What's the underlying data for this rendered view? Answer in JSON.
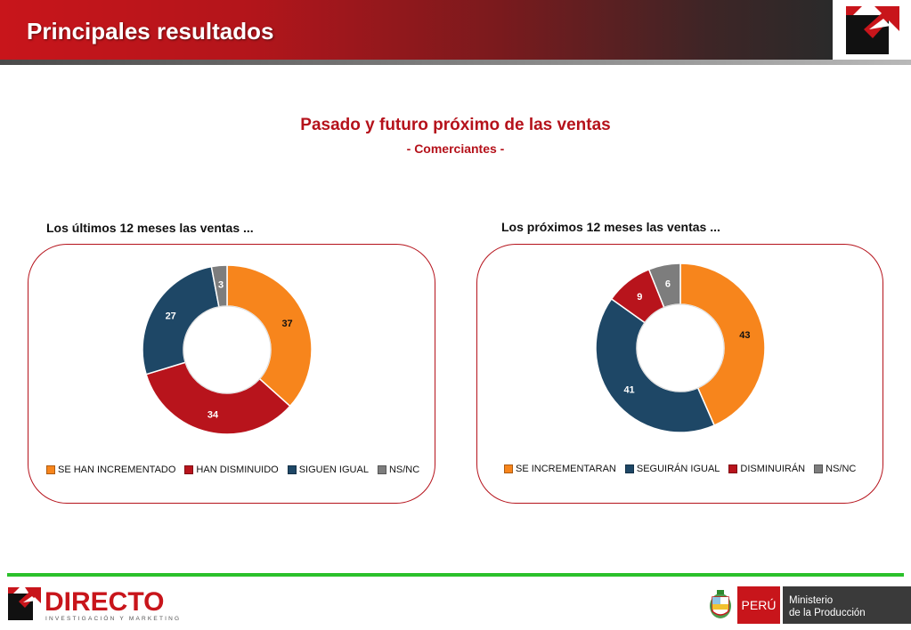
{
  "header": {
    "title": "Principales resultados"
  },
  "main": {
    "title": "Pasado y futuro próximo de las ventas",
    "subtitle": "- Comerciantes -"
  },
  "colors": {
    "orange": "#f7851c",
    "red": "#b8141c",
    "navy": "#1e4766",
    "gray": "#7d7d7d",
    "accent_red": "#b5121b",
    "green": "#2bc12b"
  },
  "chart_data": [
    {
      "type": "pie",
      "title": "Los últimos 12 meses las ventas ...",
      "categories": [
        "SE HAN INCREMENTADO",
        "HAN DISMINUIDO",
        "SIGUEN IGUAL",
        "NS/NC"
      ],
      "values": [
        37,
        34,
        27,
        3
      ],
      "colors": [
        "#f7851c",
        "#b8141c",
        "#1e4766",
        "#7d7d7d"
      ],
      "legend": "bottom"
    },
    {
      "type": "pie",
      "title": "Los próximos 12 meses las ventas ...",
      "categories": [
        "SE INCREMENTARAN",
        "SEGUIRÁN IGUAL",
        "DISMINUIRÁN",
        "NS/NC"
      ],
      "values": [
        43,
        41,
        9,
        6
      ],
      "colors": [
        "#f7851c",
        "#1e4766",
        "#b8141c",
        "#7d7d7d"
      ],
      "legend": "bottom"
    }
  ],
  "footer": {
    "brand": "DIRECTO",
    "brand_tagline": "INVESTIGACIÓN Y MARKETING",
    "country": "PERÚ",
    "ministry_line1": "Ministerio",
    "ministry_line2": "de la Producción"
  }
}
